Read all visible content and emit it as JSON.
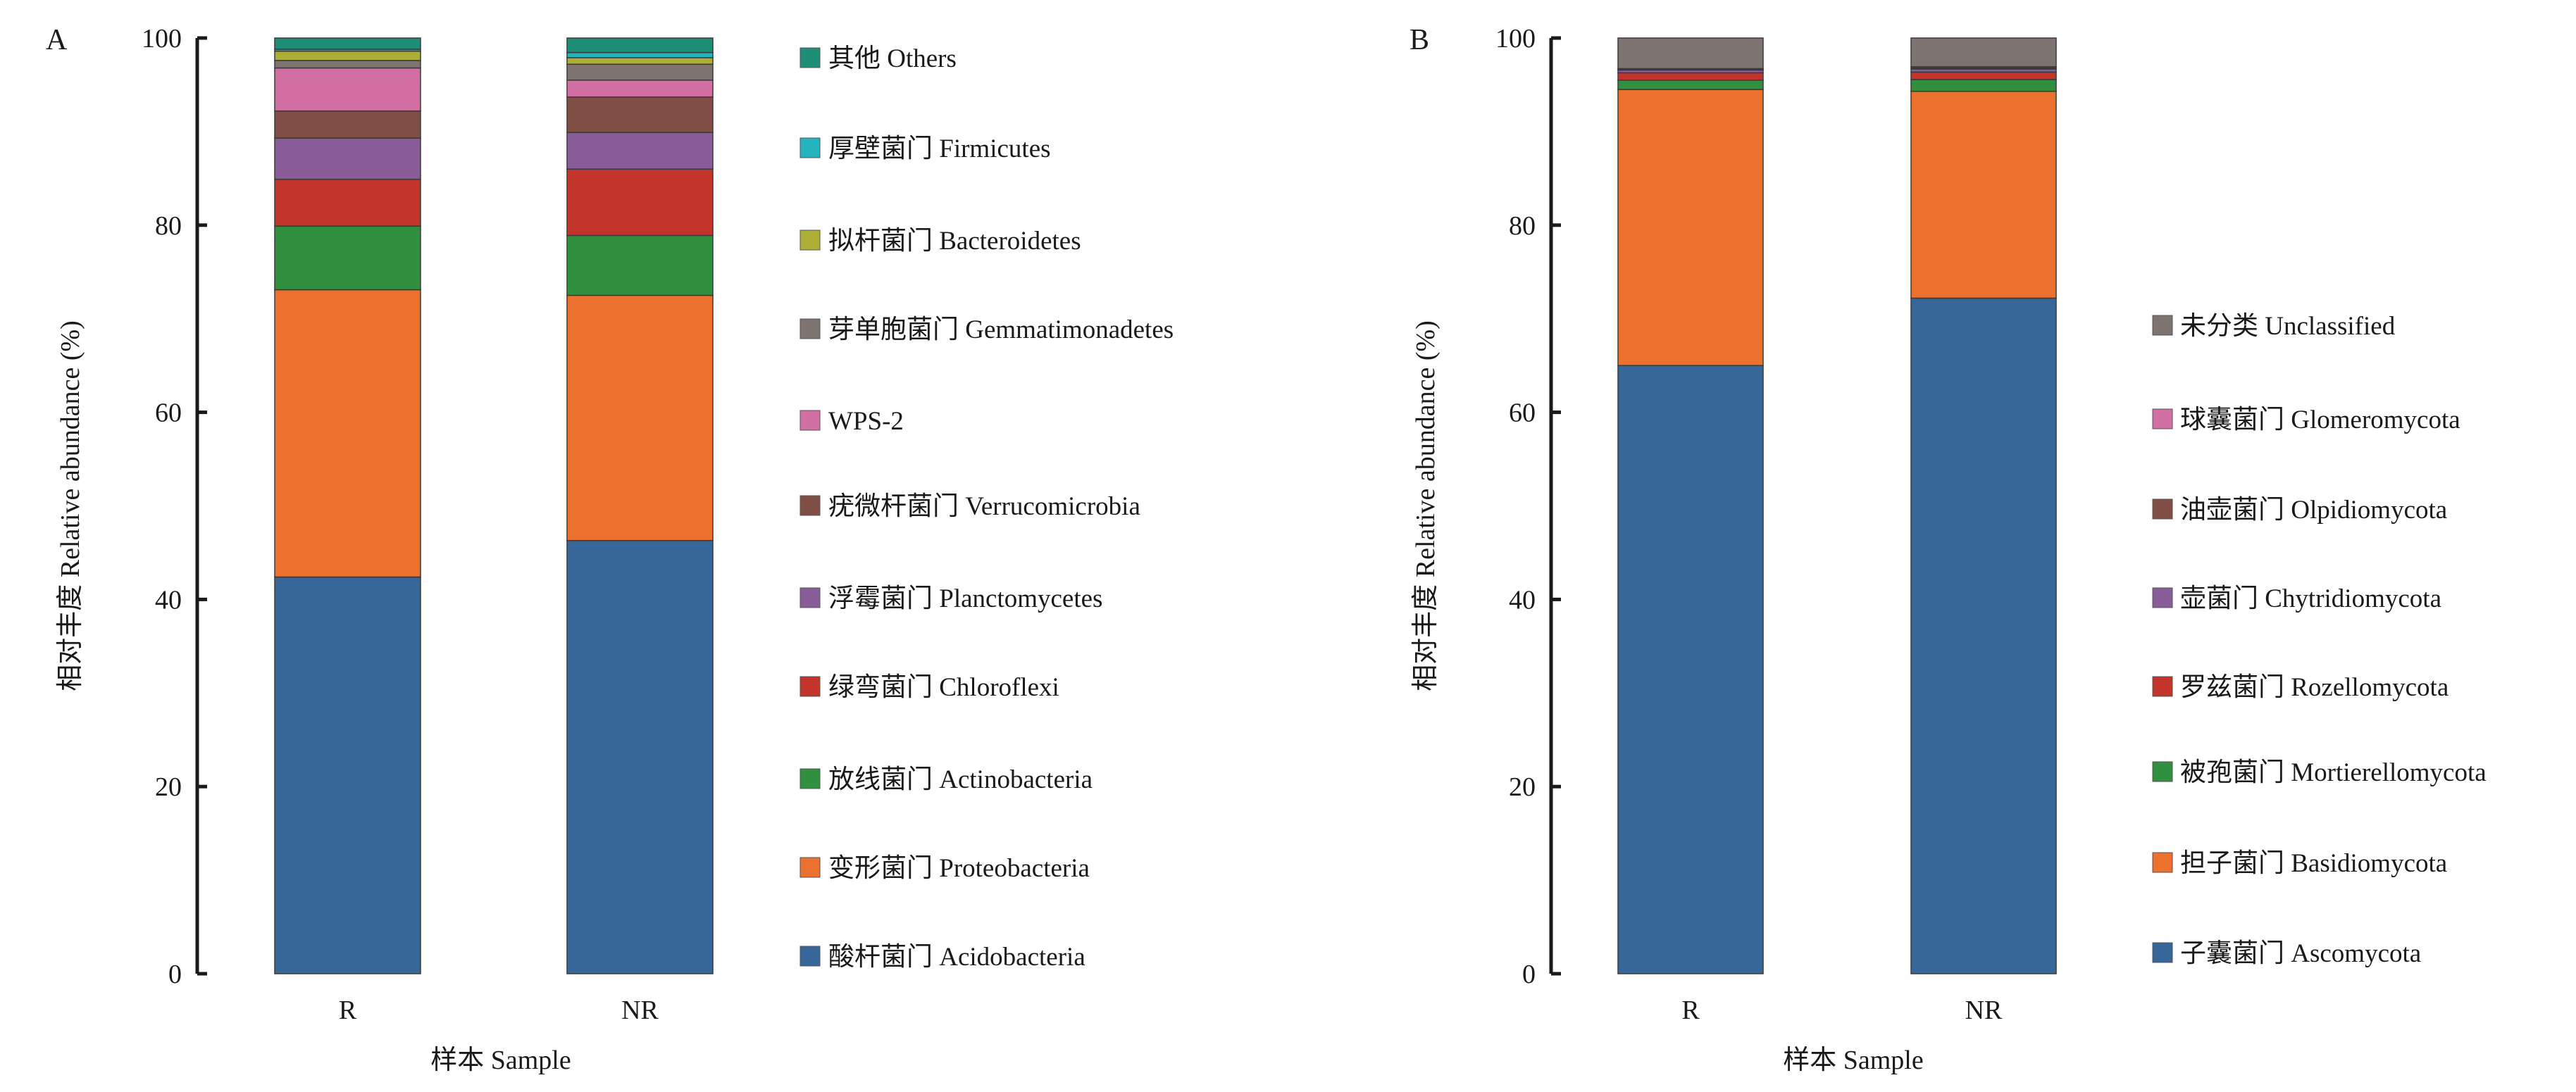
{
  "chart_data": [
    {
      "type": "bar",
      "stacked": true,
      "panel_label": "A",
      "categories": [
        "R",
        "NR"
      ],
      "xlabel": "样本 Sample",
      "ylabel": "相对丰度 Relative abundance (%)",
      "ylim": [
        0,
        100
      ],
      "yticks": [
        0,
        20,
        40,
        60,
        80,
        100
      ],
      "legend_position": "right",
      "series": [
        {
          "name": "酸杆菌门 Acidobacteria",
          "color": "#376699",
          "values": [
            42.4,
            46.3
          ]
        },
        {
          "name": "变形菌门 Proteobacteria",
          "color": "#EC702E",
          "values": [
            30.7,
            26.2
          ]
        },
        {
          "name": "放线菌门 Actinobacteria",
          "color": "#31903F",
          "values": [
            6.8,
            6.4
          ]
        },
        {
          "name": "绿弯菌门 Chloroflexi",
          "color": "#C3342D",
          "values": [
            5.0,
            7.1
          ]
        },
        {
          "name": "浮霉菌门 Planctomycetes",
          "color": "#875C97",
          "values": [
            4.4,
            3.9
          ]
        },
        {
          "name": "疣微杆菌门  Verrucomicrobia",
          "color": "#814E45",
          "values": [
            2.9,
            3.8
          ]
        },
        {
          "name": "WPS-2",
          "color": "#D16FA2",
          "values": [
            4.6,
            1.8
          ]
        },
        {
          "name": "芽单胞菌门  Gemmatimonadetes",
          "color": "#7D7470",
          "values": [
            0.8,
            1.7
          ]
        },
        {
          "name": "拟杆菌门 Bacteroidetes",
          "color": "#ADAE36",
          "values": [
            1.0,
            0.7
          ]
        },
        {
          "name": "厚壁菌门 Firmicutes",
          "color": "#24B4BE",
          "values": [
            0.2,
            0.55
          ]
        },
        {
          "name": "其他  Others",
          "color": "#1F8E76",
          "values": [
            1.2,
            1.55
          ]
        }
      ]
    },
    {
      "type": "bar",
      "stacked": true,
      "panel_label": "B",
      "categories": [
        "R",
        "NR"
      ],
      "xlabel": "样本 Sample",
      "ylabel": "相对丰度 Relative abundance (%)",
      "ylim": [
        0,
        100
      ],
      "yticks": [
        0,
        20,
        40,
        60,
        80,
        100
      ],
      "legend_position": "right",
      "series": [
        {
          "name": "子囊菌门  Ascomycota",
          "color": "#376699",
          "values": [
            65.0,
            72.2
          ]
        },
        {
          "name": "担子菌门 Basidiomycota",
          "color": "#EC702E",
          "values": [
            29.5,
            22.1
          ]
        },
        {
          "name": "被孢菌门 Mortierellomycota",
          "color": "#31903F",
          "values": [
            1.0,
            1.26
          ]
        },
        {
          "name": "罗兹菌门 Rozellomycota",
          "color": "#C3342D",
          "values": [
            0.78,
            0.8
          ]
        },
        {
          "name": "壶菌门 Chytridiomycota",
          "color": "#875C97",
          "values": [
            0.3,
            0.33
          ]
        },
        {
          "name": "油壶菌门 Olpidiomycota",
          "color": "#814E45",
          "values": [
            0.1,
            0.12
          ]
        },
        {
          "name": "球囊菌门 Glomeromycota",
          "color": "#D16FA2",
          "values": [
            0.05,
            0.12
          ]
        },
        {
          "name": "未分类 Unclassified",
          "color": "#7D7470",
          "values": [
            3.27,
            3.07
          ]
        }
      ]
    }
  ]
}
